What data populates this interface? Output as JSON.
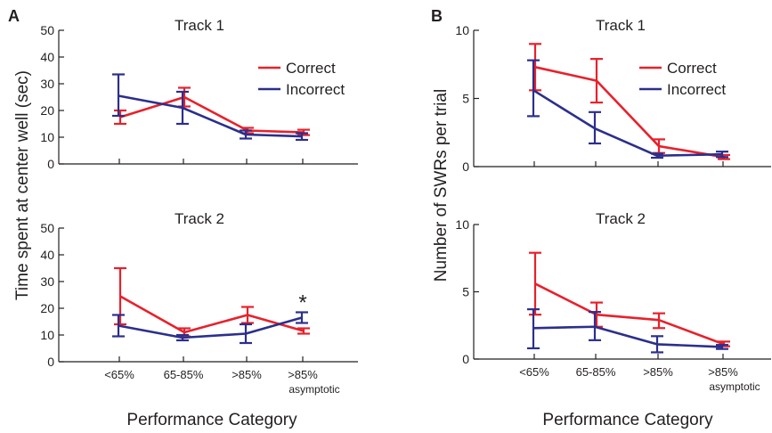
{
  "figure": {
    "panel_a_letter": "A",
    "panel_b_letter": "B",
    "left_ylabel": "Time spent at center well (sec)",
    "right_ylabel": "Number of SWRs per trial",
    "xlabel": "Performance Category",
    "significance_marker": "*"
  },
  "colors": {
    "correct": "#e8212b",
    "incorrect": "#2b2f8c",
    "axis": "#231f20"
  },
  "chart_data": [
    {
      "id": "A1",
      "type": "line",
      "title": "Track 1",
      "categories": [
        "<65%",
        "65-85%",
        ">85%",
        ">85%\nasymptotic"
      ],
      "ylim": [
        0,
        50
      ],
      "yticks": [
        0,
        10,
        20,
        30,
        40,
        50
      ],
      "series": [
        {
          "name": "Correct",
          "values": [
            17.5,
            25,
            12.5,
            11.8
          ],
          "err_low": [
            15,
            21.5,
            11.5,
            10.8
          ],
          "err_high": [
            20,
            28.5,
            13.5,
            12.8
          ]
        },
        {
          "name": "Incorrect",
          "values": [
            25.5,
            21,
            11,
            10.3
          ],
          "err_low": [
            18,
            15,
            9.5,
            9
          ],
          "err_high": [
            33.5,
            27,
            12.5,
            11.5
          ]
        }
      ],
      "legend": "top-right"
    },
    {
      "id": "A2",
      "type": "line",
      "title": "Track 2",
      "categories": [
        "<65%",
        "65-85%",
        ">85%",
        ">85%\nasymptotic"
      ],
      "ylim": [
        0,
        50
      ],
      "yticks": [
        0,
        10,
        20,
        30,
        40,
        50
      ],
      "series": [
        {
          "name": "Correct",
          "values": [
            24.5,
            11,
            17.5,
            11.5
          ],
          "err_low": [
            14,
            9.5,
            14.5,
            10.5
          ],
          "err_high": [
            35,
            12.5,
            20.5,
            12.5
          ]
        },
        {
          "name": "Incorrect",
          "values": [
            13.5,
            9,
            10.5,
            16.5
          ],
          "err_low": [
            9.5,
            8,
            7,
            14.5
          ],
          "err_high": [
            17.5,
            10,
            14,
            18.5
          ]
        }
      ],
      "annotation": {
        "text": "*",
        "category": 3
      }
    },
    {
      "id": "B1",
      "type": "line",
      "title": "Track 1",
      "categories": [
        "<65%",
        "65-85%",
        ">85%",
        ">85%\nasymptotic"
      ],
      "ylim": [
        0,
        10
      ],
      "yticks": [
        0,
        5,
        10
      ],
      "series": [
        {
          "name": "Correct",
          "values": [
            7.3,
            6.3,
            1.5,
            0.7
          ],
          "err_low": [
            5.6,
            4.7,
            1.0,
            0.55
          ],
          "err_high": [
            9.0,
            7.9,
            2.0,
            0.85
          ]
        },
        {
          "name": "Incorrect",
          "values": [
            5.6,
            2.8,
            0.8,
            0.9
          ],
          "err_low": [
            3.7,
            1.7,
            0.65,
            0.7
          ],
          "err_high": [
            7.8,
            4.0,
            0.95,
            1.1
          ]
        }
      ],
      "legend": "top-right"
    },
    {
      "id": "B2",
      "type": "line",
      "title": "Track 2",
      "categories": [
        "<65%",
        "65-85%",
        ">85%",
        ">85%\nasymptotic"
      ],
      "ylim": [
        0,
        10
      ],
      "yticks": [
        0,
        5,
        10
      ],
      "series": [
        {
          "name": "Correct",
          "values": [
            5.6,
            3.3,
            2.9,
            1.1
          ],
          "err_low": [
            3.3,
            2.4,
            2.3,
            0.95
          ],
          "err_high": [
            7.9,
            4.2,
            3.4,
            1.3
          ]
        },
        {
          "name": "Incorrect",
          "values": [
            2.3,
            2.4,
            1.1,
            0.9
          ],
          "err_low": [
            0.8,
            1.4,
            0.5,
            0.75
          ],
          "err_high": [
            3.7,
            3.5,
            1.7,
            1.05
          ]
        }
      ]
    }
  ]
}
